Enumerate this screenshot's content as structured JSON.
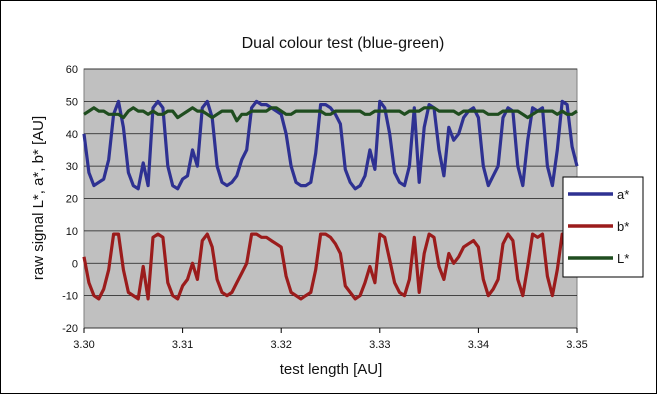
{
  "chart_data": {
    "type": "line",
    "title": "Dual colour test (blue-green)",
    "xlabel": "test length [AU]",
    "ylabel": "raw signal L*, a*, b* [AU]",
    "xlim": [
      3.3,
      3.35
    ],
    "ylim": [
      -20,
      60
    ],
    "x_ticks": [
      "3.30",
      "3.31",
      "3.32",
      "3.33",
      "3.34",
      "3.35"
    ],
    "y_ticks": [
      "60",
      "50",
      "40",
      "30",
      "20",
      "10",
      "0",
      "-10",
      "-20"
    ],
    "grid": true,
    "legend_position": "right",
    "x": [
      3.3,
      3.3005,
      3.301,
      3.3015,
      3.302,
      3.3025,
      3.303,
      3.3035,
      3.304,
      3.3045,
      3.305,
      3.3055,
      3.306,
      3.3065,
      3.307,
      3.3075,
      3.308,
      3.3085,
      3.309,
      3.3095,
      3.31,
      3.3105,
      3.311,
      3.3115,
      3.312,
      3.3125,
      3.313,
      3.3135,
      3.314,
      3.3145,
      3.315,
      3.3155,
      3.316,
      3.3165,
      3.317,
      3.3175,
      3.318,
      3.3185,
      3.319,
      3.3195,
      3.32,
      3.3205,
      3.321,
      3.3215,
      3.322,
      3.3225,
      3.323,
      3.3235,
      3.324,
      3.3245,
      3.325,
      3.3255,
      3.326,
      3.3265,
      3.327,
      3.3275,
      3.328,
      3.3285,
      3.329,
      3.3295,
      3.33,
      3.3305,
      3.331,
      3.3315,
      3.332,
      3.3325,
      3.333,
      3.3335,
      3.334,
      3.3345,
      3.335,
      3.3355,
      3.336,
      3.3365,
      3.337,
      3.3375,
      3.338,
      3.3385,
      3.339,
      3.3395,
      3.34,
      3.3405,
      3.341,
      3.3415,
      3.342,
      3.3425,
      3.343,
      3.3435,
      3.344,
      3.3445,
      3.345,
      3.3455,
      3.346,
      3.3465,
      3.347,
      3.3475,
      3.348,
      3.3485,
      3.349,
      3.3495,
      3.35
    ],
    "series": [
      {
        "name": "a*",
        "color": "#2e3192",
        "values": [
          40,
          28,
          24,
          25,
          26,
          32,
          46,
          50,
          42,
          28,
          24,
          23,
          31,
          24,
          48,
          50,
          48,
          30,
          24,
          23,
          26,
          27,
          35,
          30,
          48,
          50,
          45,
          30,
          25,
          24,
          25,
          27,
          32,
          35,
          48,
          50,
          49,
          49,
          48,
          47,
          46,
          40,
          30,
          25,
          24,
          24,
          25,
          34,
          49,
          49,
          48,
          46,
          43,
          29,
          25,
          23,
          24,
          27,
          35,
          29,
          50,
          48,
          40,
          28,
          25,
          24,
          30,
          48,
          25,
          42,
          49,
          48,
          35,
          27,
          42,
          38,
          40,
          45,
          47,
          48,
          45,
          30,
          24,
          27,
          30,
          45,
          48,
          47,
          30,
          24,
          38,
          48,
          47,
          48,
          30,
          24,
          35,
          50,
          49,
          36,
          30
        ]
      },
      {
        "name": "b*",
        "color": "#9b1c1c",
        "values": [
          2,
          -6,
          -10,
          -11,
          -8,
          -2,
          9,
          9,
          -2,
          -9,
          -10,
          -11,
          -1,
          -11,
          8,
          9,
          8,
          -6,
          -10,
          -11,
          -7,
          -5,
          0,
          -5,
          7,
          9,
          5,
          -5,
          -9,
          -10,
          -9,
          -6,
          -3,
          0,
          9,
          9,
          8,
          8,
          7,
          6,
          5,
          -4,
          -9,
          -10,
          -11,
          -10,
          -9,
          -2,
          9,
          9,
          8,
          6,
          3,
          -7,
          -9,
          -11,
          -10,
          -6,
          -1,
          -6,
          9,
          8,
          1,
          -6,
          -9,
          -10,
          -5,
          8,
          -9,
          3,
          9,
          8,
          -1,
          -5,
          3,
          0,
          2,
          5,
          6,
          7,
          5,
          -5,
          -10,
          -8,
          -5,
          6,
          9,
          7,
          -5,
          -10,
          -1,
          9,
          8,
          9,
          -4,
          -10,
          -2,
          9,
          9,
          0,
          -2
        ]
      },
      {
        "name": "L*",
        "color": "#1f4d1f",
        "values": [
          46,
          47,
          48,
          47,
          47,
          46,
          46,
          46,
          45,
          47,
          48,
          47,
          47,
          46,
          47,
          46,
          46,
          47,
          47,
          45,
          46,
          47,
          48,
          47,
          47,
          46,
          45,
          46,
          47,
          47,
          47,
          44,
          46,
          46,
          47,
          47,
          47,
          47,
          48,
          48,
          47,
          46,
          46,
          47,
          47,
          47,
          47,
          47,
          47,
          46,
          46,
          47,
          47,
          47,
          47,
          47,
          47,
          46,
          46,
          47,
          47,
          47,
          47,
          47,
          47,
          46,
          47,
          47,
          47,
          48,
          48,
          48,
          47,
          47,
          47,
          47,
          46,
          47,
          47,
          47,
          47,
          47,
          46,
          46,
          46,
          47,
          47,
          47,
          47,
          46,
          45,
          46,
          47,
          47,
          47,
          47,
          46,
          47,
          46,
          46,
          47
        ]
      }
    ]
  }
}
